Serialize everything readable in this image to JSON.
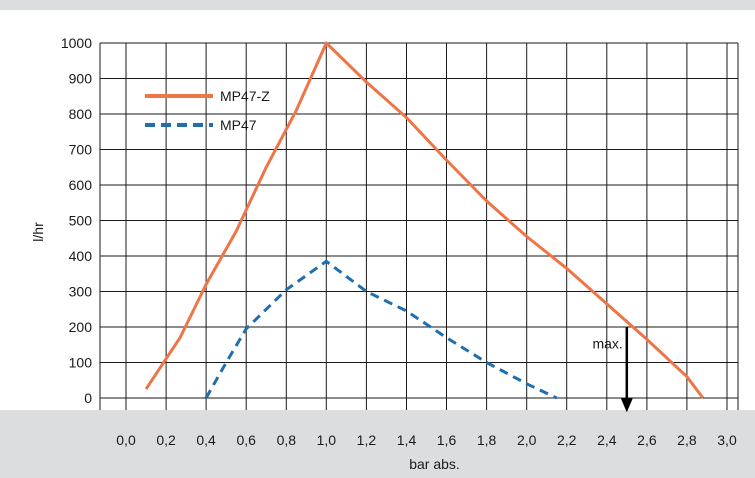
{
  "chart_data": {
    "type": "line",
    "xlabel": "bar abs.",
    "ylabel": "l/hr",
    "xlim": [
      0.0,
      3.0
    ],
    "ylim": [
      0,
      1000
    ],
    "x_ticks": [
      "0,0",
      "0,2",
      "0,4",
      "0,6",
      "0,8",
      "1,0",
      "1,2",
      "1,4",
      "1,6",
      "1,8",
      "2,0",
      "2,2",
      "2,4",
      "2,6",
      "2,8",
      "3,0"
    ],
    "y_ticks": [
      "0",
      "100",
      "200",
      "300",
      "400",
      "500",
      "600",
      "700",
      "800",
      "900",
      "1000"
    ],
    "grid": true,
    "legend_placement": "top-left",
    "series": [
      {
        "name": "MP47-Z",
        "style": "solid",
        "color": "#ee7546",
        "points": [
          [
            0.1,
            25
          ],
          [
            0.27,
            170
          ],
          [
            0.4,
            320
          ],
          [
            0.55,
            470
          ],
          [
            0.7,
            650
          ],
          [
            0.85,
            810
          ],
          [
            1.0,
            1000
          ],
          [
            1.2,
            890
          ],
          [
            1.4,
            790
          ],
          [
            1.6,
            670
          ],
          [
            1.8,
            555
          ],
          [
            2.0,
            455
          ],
          [
            2.2,
            365
          ],
          [
            2.4,
            265
          ],
          [
            2.6,
            165
          ],
          [
            2.8,
            60
          ],
          [
            2.88,
            0
          ]
        ]
      },
      {
        "name": "MP47",
        "style": "dashed",
        "color": "#1f6eb0",
        "points": [
          [
            0.4,
            0
          ],
          [
            0.5,
            100
          ],
          [
            0.6,
            195
          ],
          [
            0.8,
            305
          ],
          [
            1.0,
            385
          ],
          [
            1.2,
            300
          ],
          [
            1.4,
            245
          ],
          [
            1.6,
            170
          ],
          [
            1.8,
            100
          ],
          [
            2.0,
            40
          ],
          [
            2.15,
            0
          ]
        ]
      }
    ],
    "annotations": [
      {
        "text": "max.",
        "x": 2.5,
        "y_from": 200,
        "y_to": -40
      }
    ]
  },
  "colors": {
    "bottom_band": "#dcdddf",
    "top_band": "#dcdddf",
    "grid": "#1a1a1a"
  }
}
